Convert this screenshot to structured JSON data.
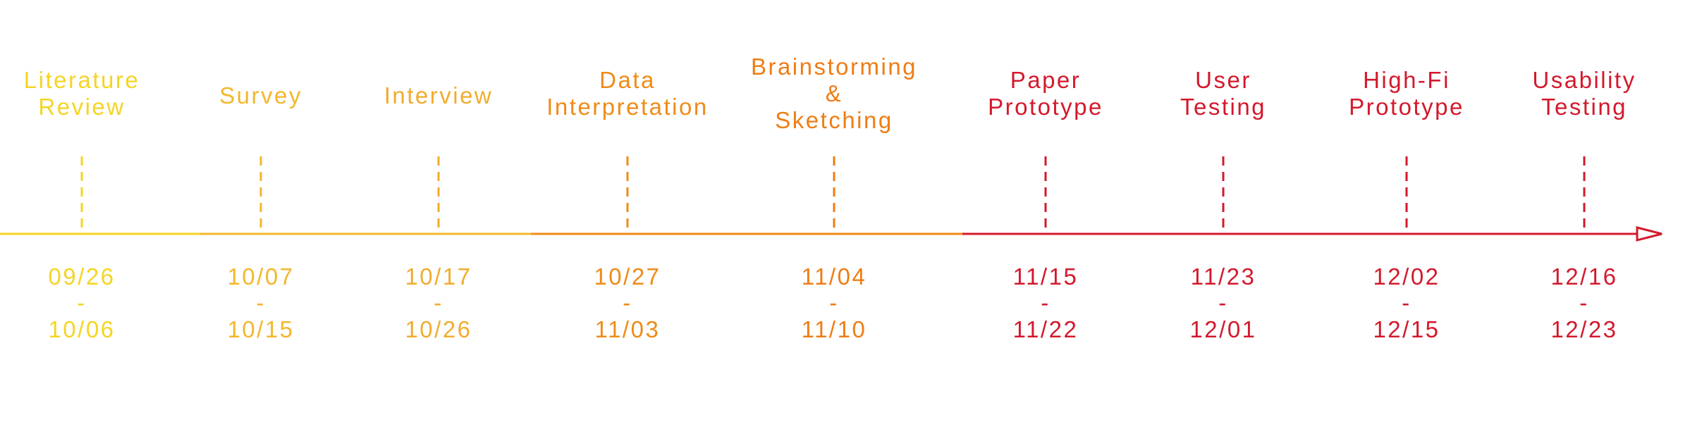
{
  "stages": [
    {
      "label": "Literature\nReview",
      "start": "09/26",
      "separator": "-",
      "end": "10/06",
      "color": "#f5d523"
    },
    {
      "label": "Survey",
      "start": "10/07",
      "separator": "-",
      "end": "10/15",
      "color": "#f3b72d"
    },
    {
      "label": "Interview",
      "start": "10/17",
      "separator": "-",
      "end": "10/26",
      "color": "#f1ac2e"
    },
    {
      "label": "Data\nInterpretation",
      "start": "10/27",
      "separator": "-",
      "end": "11/03",
      "color": "#ef8b17"
    },
    {
      "label": "Brainstorming\n&\nSketching",
      "start": "11/04",
      "separator": "-",
      "end": "11/10",
      "color": "#ee7d14"
    },
    {
      "label": "Paper\nPrototype",
      "start": "11/15",
      "separator": "-",
      "end": "11/22",
      "color": "#d3192c"
    },
    {
      "label": "User\nTesting",
      "start": "11/23",
      "separator": "-",
      "end": "12/01",
      "color": "#d3192c"
    },
    {
      "label": "High-Fi\nPrototype",
      "start": "12/02",
      "separator": "-",
      "end": "12/15",
      "color": "#d3192c"
    },
    {
      "label": "Usability\nTesting",
      "start": "12/16",
      "separator": "-",
      "end": "12/23",
      "color": "#d3192c"
    }
  ],
  "axis_colors": {
    "yellow": "#f5d523",
    "gold": "#f3b72d",
    "orange": "#ef8b17",
    "red": "#d3192c"
  }
}
